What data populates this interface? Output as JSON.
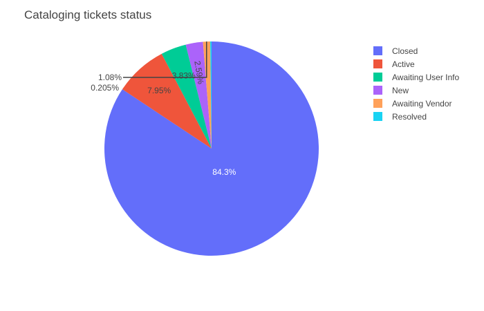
{
  "chart_data": {
    "type": "pie",
    "title": "Cataloging tickets status",
    "categories": [
      "Closed",
      "Active",
      "Awaiting User Info",
      "New",
      "Awaiting Vendor",
      "Resolved"
    ],
    "values": [
      84.3,
      7.95,
      3.83,
      2.59,
      1.08,
      0.205
    ],
    "value_labels": [
      "84.3%",
      "7.95%",
      "3.83%",
      "2.59%",
      "1.08%",
      "0.205%"
    ],
    "colors": [
      "#636efa",
      "#EF553B",
      "#00cc96",
      "#ab63fa",
      "#FFA15A",
      "#19d3f3"
    ],
    "legend_placement": "top-right",
    "sort": "descending",
    "direction": "clockwise",
    "rotation_start": "top"
  }
}
